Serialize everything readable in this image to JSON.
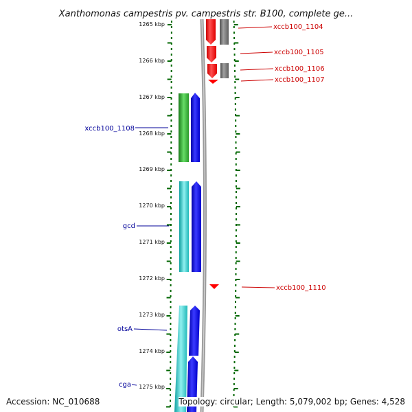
{
  "title": "Xanthomonas campestris pv. campestris str. B100, complete ge...",
  "ticks": [
    "1265 kbp",
    "1266 kbp",
    "1267 kbp",
    "1268 kbp",
    "1269 kbp",
    "1270 kbp",
    "1271 kbp",
    "1272 kbp",
    "1273 kbp",
    "1274 kbp",
    "1275 kbp"
  ],
  "right_labels": [
    "xccb100_1104",
    "xccb100_1105",
    "xccb100_1106",
    "xccb100_1107",
    "xccb100_1110"
  ],
  "left_labels": [
    "xccb100_1108",
    "gcd",
    "otsA",
    "cga"
  ],
  "footer": {
    "accession": "Accession: NC_010688",
    "topology": "Topology: circular; Length: 5,079,002 bp; Genes: 4,528"
  },
  "colors": {
    "ticks": "#006600",
    "right_label": "#cc0000",
    "left_label": "#000099",
    "red_gene": "#ff0000",
    "grey_gene": "#707070",
    "green_gene": "#2ea82e",
    "cyan_gene": "#20c0c0",
    "blue_gene": "#0000ee",
    "backbone": "#888888"
  }
}
